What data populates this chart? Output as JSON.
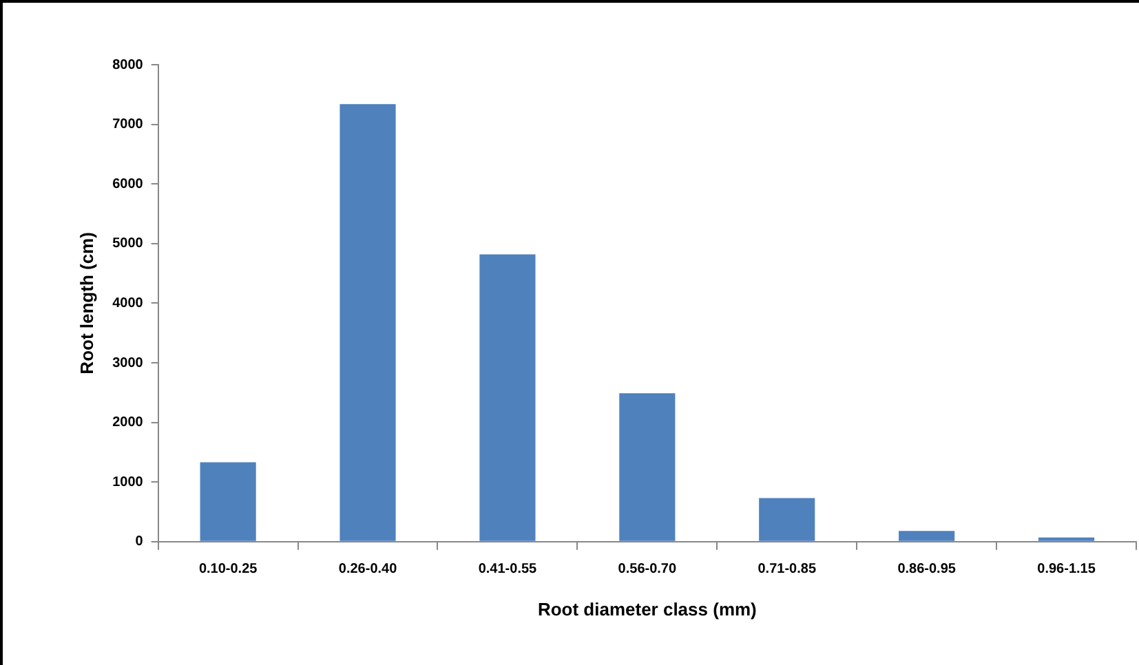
{
  "chart_data": {
    "type": "bar",
    "xlabel": "Root diameter class (mm)",
    "ylabel": "Root length (cm)",
    "categories": [
      "0.10-0.25",
      "0.26-0.40",
      "0.41-0.55",
      "0.56-0.70",
      "0.71-0.85",
      "0.86-0.95",
      "0.96-1.15"
    ],
    "values": [
      1330,
      7340,
      4820,
      2490,
      730,
      180,
      70
    ],
    "color": "#4f81bd",
    "ylim": [
      0,
      8000
    ],
    "yticks": [
      0,
      1000,
      2000,
      3000,
      4000,
      5000,
      6000,
      7000,
      8000
    ],
    "grid": false,
    "legend": false
  }
}
